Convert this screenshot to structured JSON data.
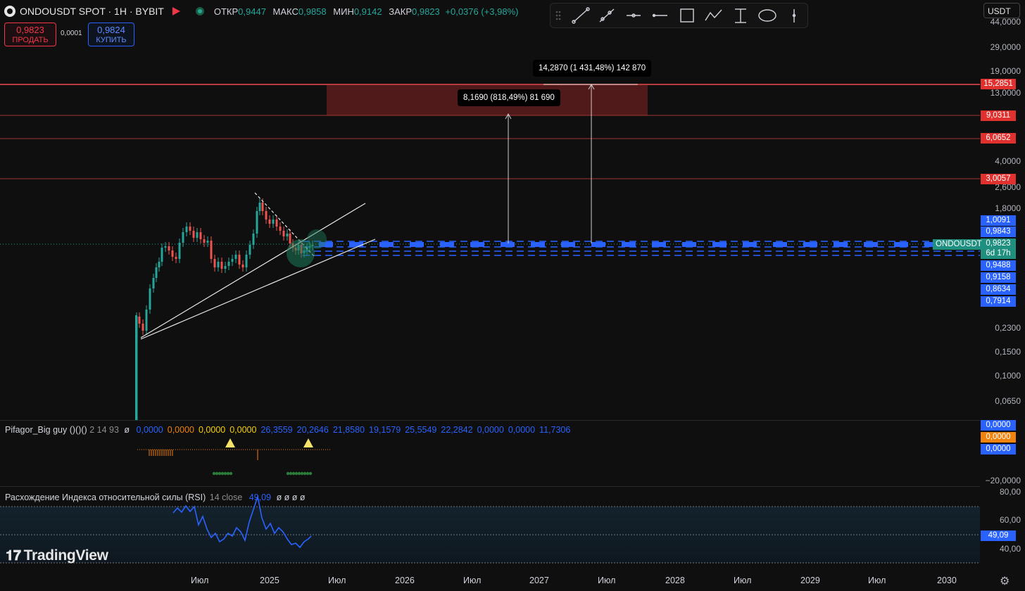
{
  "header": {
    "symbol_title": "ONDOUSDT SPOT · 1H · BYBIT",
    "ohlc": [
      {
        "key": "ОТКР",
        "value": "0,9447"
      },
      {
        "key": "МАКС",
        "value": "0,9858"
      },
      {
        "key": "МИН",
        "value": "0,9142"
      },
      {
        "key": "ЗАКР",
        "value": "0,9823"
      }
    ],
    "change": "+0,0376 (+3,98%)"
  },
  "trade": {
    "sell_price": "0,9823",
    "sell_label": "ПРОДАТЬ",
    "spread": "0,0001",
    "buy_price": "0,9824",
    "buy_label": "КУПИТЬ"
  },
  "currency": "USDT",
  "toolbar": {
    "tools": [
      "drag-handle-icon",
      "trend-line-icon",
      "ray-icon",
      "info-line-icon",
      "horizontal-line-icon",
      "rectangle-icon",
      "path-icon",
      "price-range-icon",
      "ellipse-icon",
      "vertical-line-icon"
    ]
  },
  "price_axis": {
    "labels": [
      "44,0000",
      "29,0000",
      "19,0000",
      "13,0000",
      "4,0000",
      "2,6000",
      "1,8000",
      "0,2300",
      "0,1500",
      "0,1000",
      "0,0650"
    ],
    "tags": [
      {
        "text": "15,2851",
        "color": "red"
      },
      {
        "text": "9,0311",
        "color": "red"
      },
      {
        "text": "6,0652",
        "color": "red"
      },
      {
        "text": "3,0057",
        "color": "red"
      },
      {
        "text": "1,0091",
        "color": "blue"
      },
      {
        "text": "0,9843",
        "color": "blue"
      },
      {
        "text": "0,9823",
        "color": "green"
      },
      {
        "text": "6d 17h",
        "color": "green"
      },
      {
        "text": "0,9488",
        "color": "blue"
      },
      {
        "text": "0,9158",
        "color": "blue"
      },
      {
        "text": "0,8634",
        "color": "blue"
      },
      {
        "text": "0,7914",
        "color": "blue"
      }
    ],
    "symbol_tag": "ONDOUSDT"
  },
  "measurements": [
    {
      "text": "14,2870 (1 431,48%) 142 870"
    },
    {
      "text": "8,1690 (818,49%) 81 690"
    }
  ],
  "indicator1": {
    "name": "Pifagor_Big guy ()()()",
    "params": "2 14 93",
    "null_symbol": "ø",
    "values": [
      {
        "v": "0,0000",
        "color": "#2962ff"
      },
      {
        "v": "0,0000",
        "color": "#f0820e"
      },
      {
        "v": "0,0000",
        "color": "#f7d000"
      },
      {
        "v": "0,0000",
        "color": "#f7d000"
      },
      {
        "v": "26,3559",
        "color": "#2962ff"
      },
      {
        "v": "20,2646",
        "color": "#2962ff"
      },
      {
        "v": "21,8580",
        "color": "#2962ff"
      },
      {
        "v": "19,1579",
        "color": "#2962ff"
      },
      {
        "v": "25,5549",
        "color": "#2962ff"
      },
      {
        "v": "22,2842",
        "color": "#2962ff"
      },
      {
        "v": "0,0000",
        "color": "#2962ff"
      },
      {
        "v": "0,0000",
        "color": "#2962ff"
      },
      {
        "v": "11,7306",
        "color": "#2962ff"
      }
    ],
    "axis_tags": [
      {
        "text": "0,0000",
        "color": "blue"
      },
      {
        "text": "0,0000",
        "color": "orange"
      },
      {
        "text": "0,0000",
        "color": "blue"
      }
    ],
    "axis_label": "−20,0000"
  },
  "rsi": {
    "name": "Расхождение Индекса относительной силы (RSI)",
    "params": "14 close",
    "value": "49,09",
    "nulls": "ø ø ø ø",
    "axis_labels": [
      "80,00",
      "60,00",
      "40,00"
    ],
    "tag": "49,09"
  },
  "time_axis": [
    "Июл",
    "2025",
    "Июл",
    "2026",
    "Июл",
    "2027",
    "Июл",
    "2028",
    "Июл",
    "2029",
    "Июл",
    "2030"
  ],
  "logo": "TradingView",
  "colors": {
    "bull": "#26a69a",
    "bear": "#ef5350",
    "accent": "#2962ff",
    "target": "#e1312f"
  }
}
